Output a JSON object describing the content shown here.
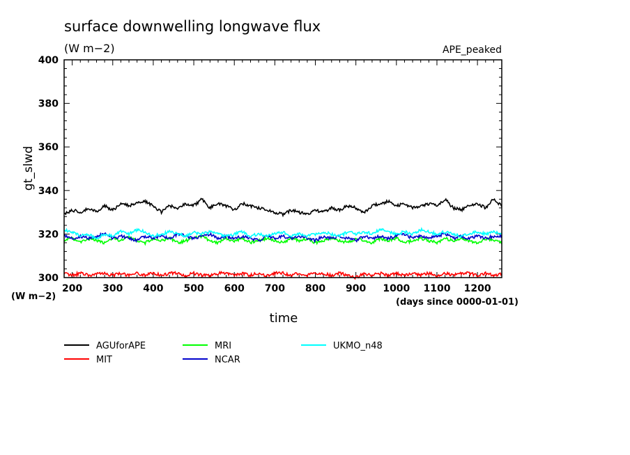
{
  "chart_data": {
    "type": "line",
    "title": "surface downwelling longwave flux",
    "units": "(W m−2)",
    "run_label": "APE_peaked",
    "ylabel": "gt_slwd",
    "y_units": "(W m−2)",
    "xlabel": "time",
    "x_units": "(days since 0000-01-01)",
    "xlim": [
      180,
      1260
    ],
    "ylim": [
      300,
      400
    ],
    "x_ticks": [
      200,
      300,
      400,
      500,
      600,
      700,
      800,
      900,
      1000,
      1100,
      1200
    ],
    "y_ticks": [
      300,
      320,
      340,
      360,
      380,
      400
    ],
    "legend_position": "below-left",
    "series": [
      {
        "name": "AGUforAPE",
        "color": "#000000",
        "x": [
          180,
          200,
          220,
          240,
          260,
          280,
          300,
          320,
          340,
          360,
          380,
          400,
          420,
          440,
          460,
          480,
          500,
          520,
          540,
          560,
          580,
          600,
          620,
          640,
          660,
          680,
          700,
          720,
          740,
          760,
          780,
          800,
          820,
          840,
          860,
          880,
          900,
          920,
          940,
          960,
          980,
          1000,
          1020,
          1040,
          1060,
          1080,
          1100,
          1120,
          1140,
          1160,
          1180,
          1200,
          1220,
          1240,
          1260
        ],
        "y": [
          329,
          331,
          330,
          332,
          330,
          333,
          331,
          334,
          333,
          334,
          335,
          333,
          330,
          333,
          332,
          334,
          333,
          336,
          332,
          334,
          333,
          331,
          334,
          333,
          332,
          331,
          330,
          329,
          331,
          330,
          329,
          331,
          330,
          332,
          331,
          333,
          332,
          330,
          333,
          334,
          335,
          333,
          334,
          332,
          333,
          334,
          333,
          336,
          332,
          331,
          333,
          334,
          332,
          336,
          333
        ]
      },
      {
        "name": "MIT",
        "color": "#ff0000",
        "x": [
          180,
          200,
          220,
          240,
          260,
          280,
          300,
          320,
          340,
          360,
          380,
          400,
          420,
          440,
          460,
          480,
          500,
          520,
          540,
          560,
          580,
          600,
          620,
          640,
          660,
          680,
          700,
          720,
          740,
          760,
          780,
          800,
          820,
          840,
          860,
          880,
          900,
          920,
          940,
          960,
          980,
          1000,
          1020,
          1040,
          1060,
          1080,
          1100,
          1120,
          1140,
          1160,
          1180,
          1200,
          1220,
          1240,
          1260
        ],
        "y": [
          302,
          301,
          302,
          301,
          302,
          302,
          301,
          302,
          301,
          302,
          301,
          302,
          301,
          302,
          302,
          301,
          302,
          301,
          301,
          302,
          302,
          301,
          302,
          301,
          302,
          301,
          302,
          302,
          301,
          302,
          301,
          302,
          302,
          301,
          302,
          301,
          300,
          302,
          301,
          302,
          301,
          302,
          301,
          302,
          301,
          302,
          301,
          302,
          301,
          302,
          302,
          301,
          302,
          301,
          302
        ]
      },
      {
        "name": "MRI",
        "color": "#00ff00",
        "x": [
          180,
          200,
          220,
          240,
          260,
          280,
          300,
          320,
          340,
          360,
          380,
          400,
          420,
          440,
          460,
          480,
          500,
          520,
          540,
          560,
          580,
          600,
          620,
          640,
          660,
          680,
          700,
          720,
          740,
          760,
          780,
          800,
          820,
          840,
          860,
          880,
          900,
          920,
          940,
          960,
          980,
          1000,
          1020,
          1040,
          1060,
          1080,
          1100,
          1120,
          1140,
          1160,
          1180,
          1200,
          1220,
          1240,
          1260
        ],
        "y": [
          317,
          318,
          316,
          318,
          317,
          316,
          318,
          317,
          319,
          317,
          316,
          318,
          317,
          318,
          316,
          317,
          318,
          319,
          317,
          316,
          318,
          317,
          318,
          316,
          317,
          318,
          317,
          316,
          318,
          317,
          318,
          316,
          317,
          318,
          317,
          316,
          318,
          317,
          316,
          318,
          317,
          318,
          316,
          317,
          318,
          317,
          316,
          318,
          317,
          318,
          317,
          316,
          318,
          317,
          316
        ]
      },
      {
        "name": "NCAR",
        "color": "#0000cc",
        "x": [
          180,
          200,
          220,
          240,
          260,
          280,
          300,
          320,
          340,
          360,
          380,
          400,
          420,
          440,
          460,
          480,
          500,
          520,
          540,
          560,
          580,
          600,
          620,
          640,
          660,
          680,
          700,
          720,
          740,
          760,
          780,
          800,
          820,
          840,
          860,
          880,
          900,
          920,
          940,
          960,
          980,
          1000,
          1020,
          1040,
          1060,
          1080,
          1100,
          1120,
          1140,
          1160,
          1180,
          1200,
          1220,
          1240,
          1260
        ],
        "y": [
          319,
          318,
          319,
          318,
          319,
          320,
          318,
          319,
          318,
          317,
          319,
          318,
          319,
          318,
          320,
          319,
          318,
          319,
          320,
          318,
          319,
          318,
          319,
          318,
          317,
          319,
          318,
          319,
          318,
          319,
          318,
          317,
          319,
          318,
          319,
          318,
          317,
          319,
          318,
          319,
          318,
          319,
          320,
          318,
          319,
          318,
          319,
          320,
          318,
          319,
          318,
          319,
          318,
          319,
          319
        ]
      },
      {
        "name": "UKMO_n48",
        "color": "#00ffff",
        "x": [
          180,
          200,
          220,
          240,
          260,
          280,
          300,
          320,
          340,
          360,
          380,
          400,
          420,
          440,
          460,
          480,
          500,
          520,
          540,
          560,
          580,
          600,
          620,
          640,
          660,
          680,
          700,
          720,
          740,
          760,
          780,
          800,
          820,
          840,
          860,
          880,
          900,
          920,
          940,
          960,
          980,
          1000,
          1020,
          1040,
          1060,
          1080,
          1100,
          1120,
          1140,
          1160,
          1180,
          1200,
          1220,
          1240,
          1260
        ],
        "y": [
          322,
          321,
          319,
          320,
          318,
          320,
          319,
          321,
          320,
          322,
          321,
          319,
          320,
          321,
          320,
          319,
          321,
          320,
          321,
          320,
          319,
          320,
          321,
          319,
          320,
          319,
          320,
          321,
          319,
          320,
          319,
          320,
          321,
          320,
          319,
          321,
          320,
          321,
          320,
          322,
          321,
          320,
          321,
          320,
          322,
          321,
          320,
          321,
          320,
          319,
          320,
          321,
          320,
          321,
          320
        ]
      }
    ]
  }
}
